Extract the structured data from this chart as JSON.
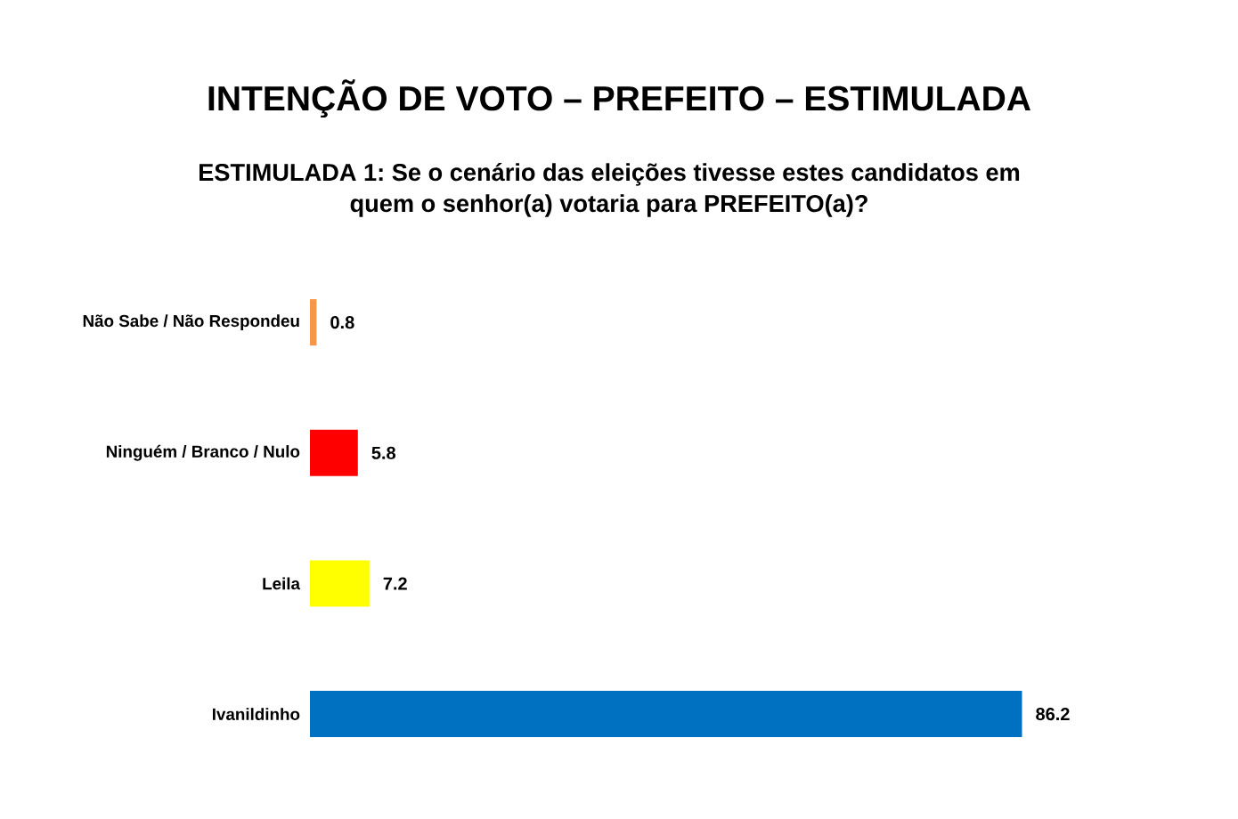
{
  "chart_data": {
    "type": "bar",
    "orientation": "horizontal",
    "title": "INTENÇÃO DE VOTO – PREFEITO – ESTIMULADA",
    "subtitle": "ESTIMULADA 1: Se o cenário das eleições tivesse estes candidatos em quem o senhor(a) votaria para PREFEITO(a)?",
    "categories": [
      "Não Sabe / Não Respondeu",
      "Ninguém / Branco / Nulo",
      "Leila",
      "Ivanildinho"
    ],
    "values": [
      0.8,
      5.8,
      7.2,
      86.2
    ],
    "colors": [
      "#f79646",
      "#ff0000",
      "#ffff00",
      "#0070c0"
    ],
    "data_labels": true
  }
}
